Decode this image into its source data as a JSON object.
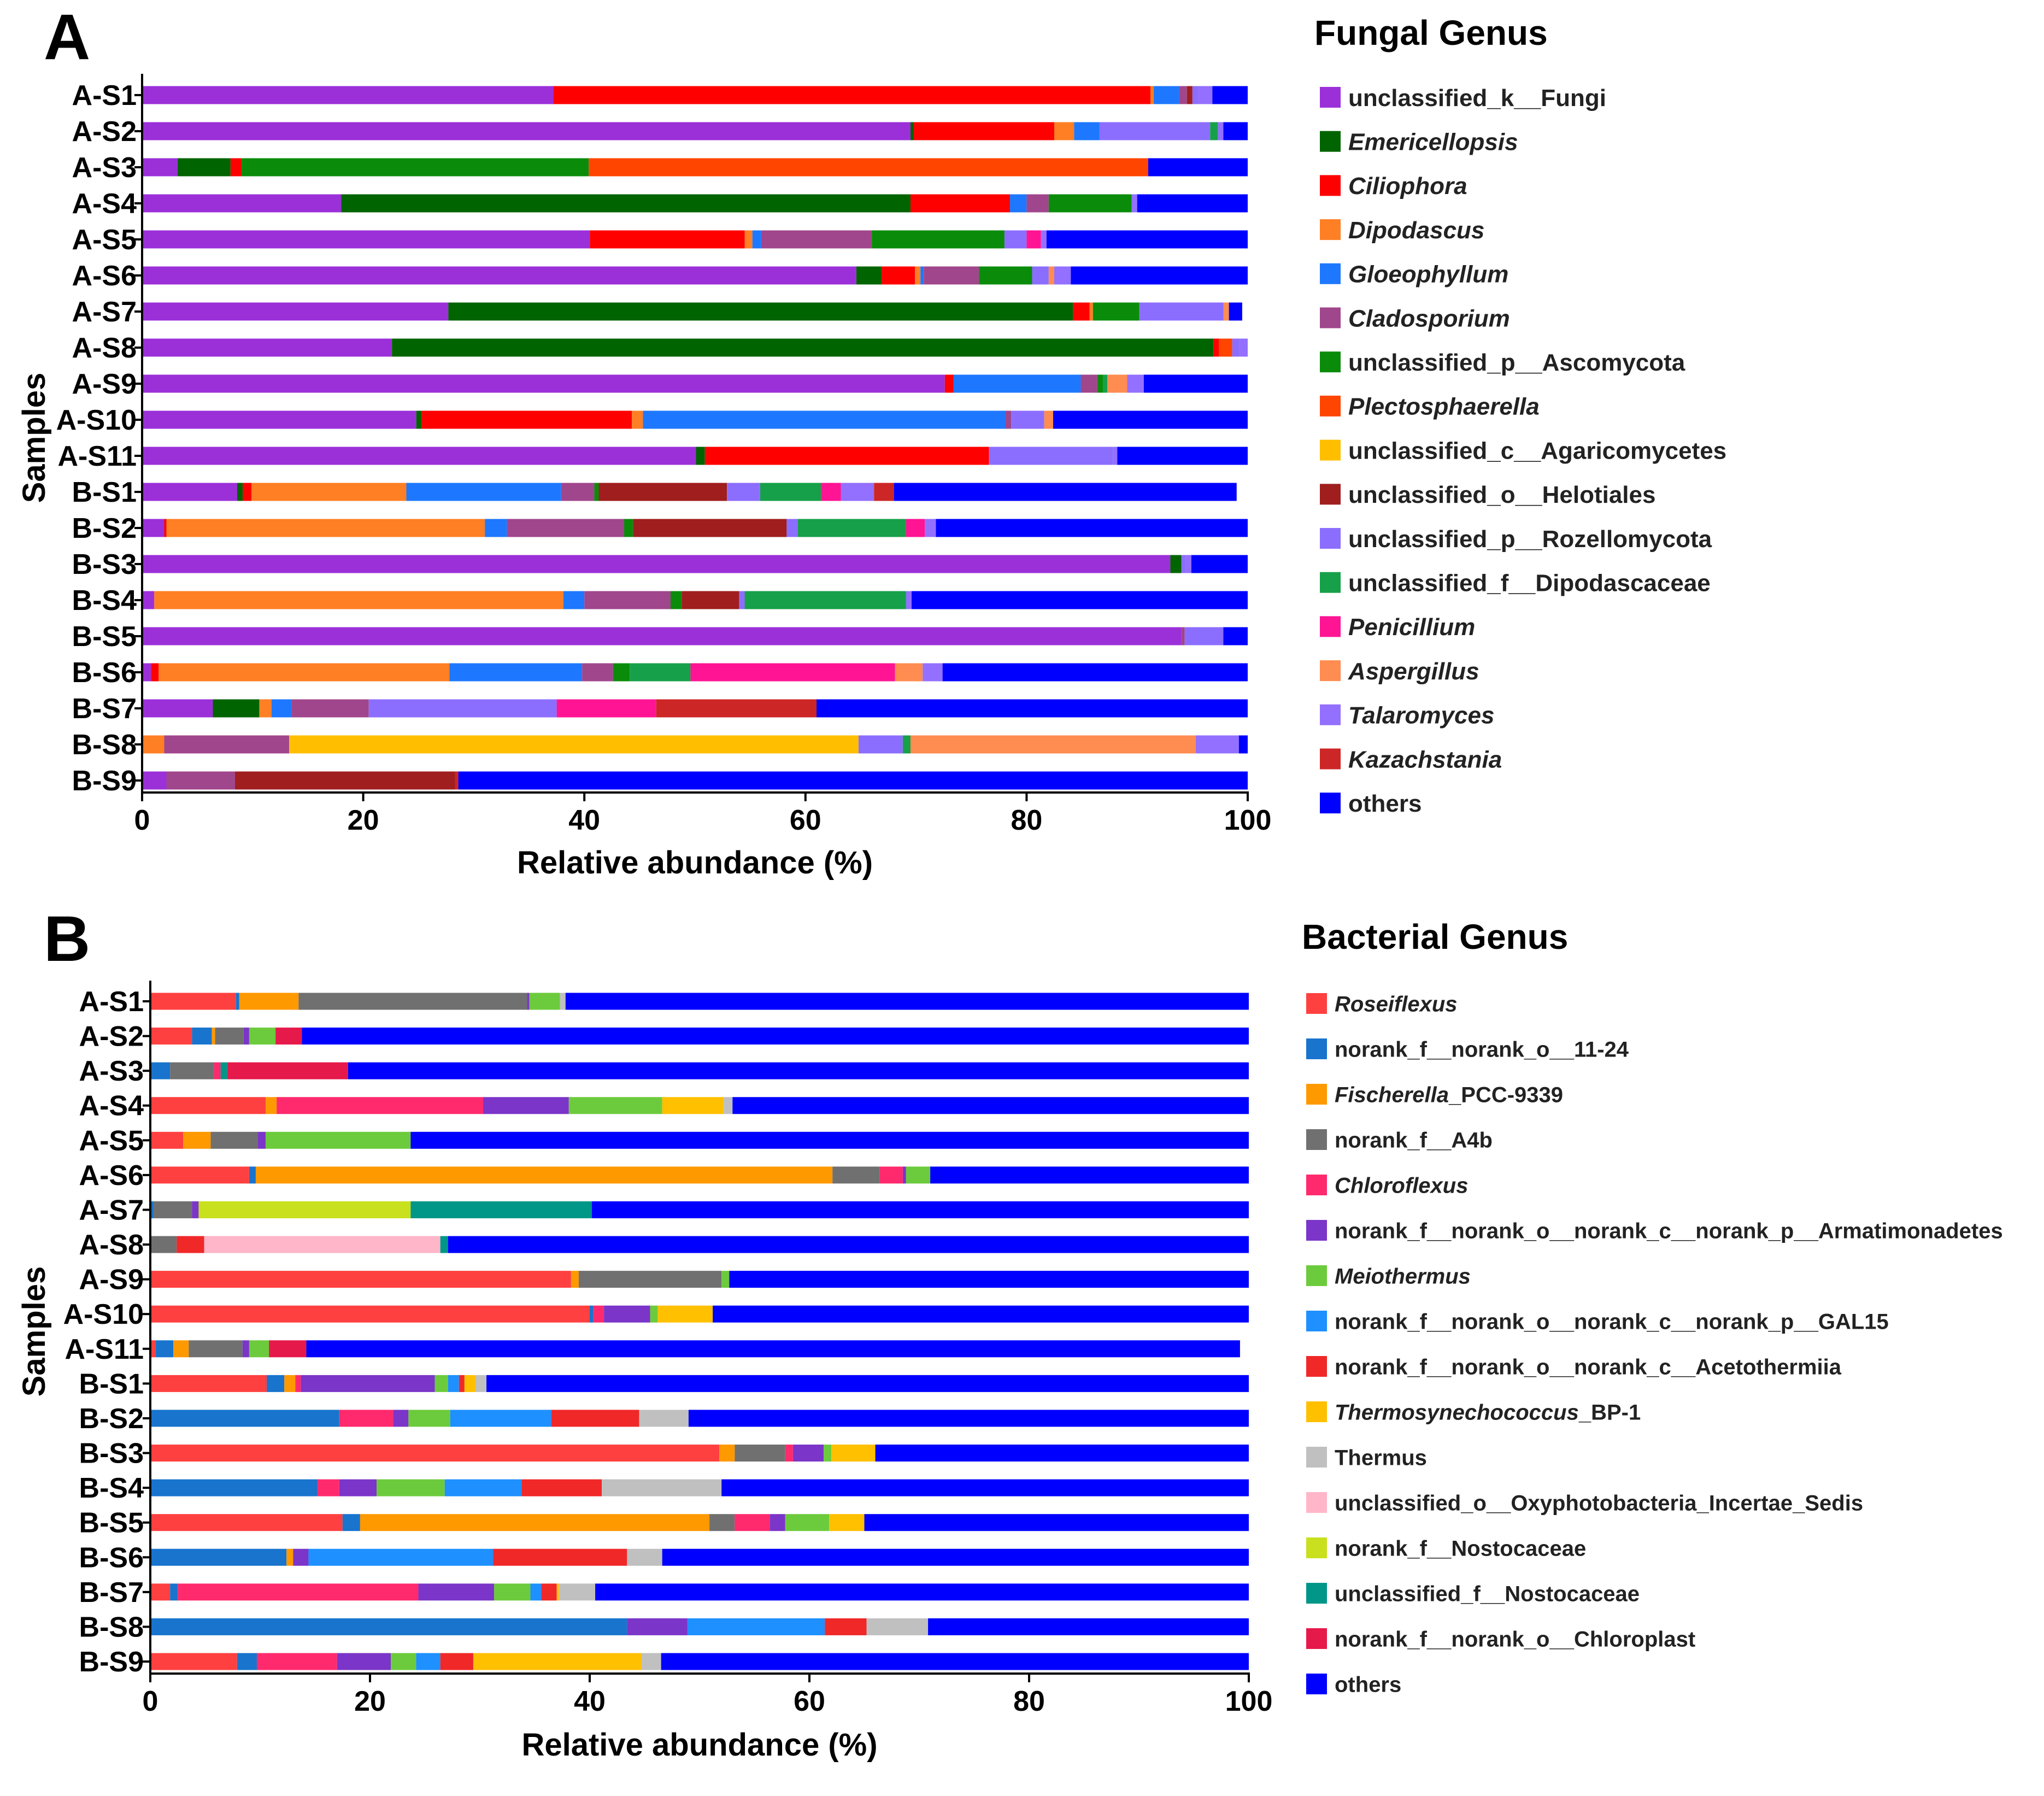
{
  "figure": {
    "panels": [
      "A",
      "B"
    ]
  },
  "chart_data": [
    {
      "type": "bar",
      "orientation": "horizontal",
      "stacked": true,
      "panel_label": "A",
      "title": "Fungal Genus",
      "xlabel": "Relative abundance (%)",
      "ylabel": "Samples",
      "xlim": [
        0,
        100
      ],
      "xticks": [
        0,
        20,
        40,
        60,
        80,
        100
      ],
      "legend_position": "right",
      "categories": [
        "A-S1",
        "A-S2",
        "A-S3",
        "A-S4",
        "A-S5",
        "A-S6",
        "A-S7",
        "A-S8",
        "A-S9",
        "A-S10",
        "A-S11",
        "B-S1",
        "B-S2",
        "B-S3",
        "B-S4",
        "B-S5",
        "B-S6",
        "B-S7",
        "B-S8",
        "B-S9"
      ],
      "series": [
        {
          "name": "unclassified_k__Fungi",
          "italic": false,
          "color": "#9b30d9",
          "values": [
            37.2,
            69.5,
            3.2,
            18.0,
            40.5,
            64.6,
            27.7,
            22.6,
            72.6,
            24.8,
            50.1,
            8.6,
            2.0,
            93.0,
            1.1,
            94.0,
            0.8,
            6.4,
            0,
            2.2
          ]
        },
        {
          "name": "Emericellopsis",
          "italic": true,
          "color": "#006400",
          "values": [
            0,
            0.3,
            4.8,
            51.5,
            0,
            2.3,
            56.5,
            74.3,
            0,
            0.5,
            0.8,
            0.5,
            0,
            1.0,
            0,
            0,
            0,
            4.2,
            0,
            0
          ]
        },
        {
          "name": "Ciliophora",
          "italic": true,
          "color": "#ff0000",
          "values": [
            54.0,
            12.7,
            1.0,
            9.0,
            14.0,
            3.0,
            1.5,
            0.5,
            0.8,
            19.0,
            25.7,
            0.8,
            0.2,
            0,
            0,
            0,
            0.7,
            0,
            0,
            0
          ]
        },
        {
          "name": "Dipodascus",
          "italic": true,
          "color": "#ff7f24",
          "values": [
            0.3,
            1.8,
            0,
            0,
            0.7,
            0.5,
            0.3,
            0,
            0,
            1.0,
            0,
            14.0,
            28.8,
            0,
            37.0,
            0,
            26.3,
            1.1,
            2.0,
            0
          ]
        },
        {
          "name": "Gloeophyllum",
          "italic": true,
          "color": "#1e78ff",
          "values": [
            2.3,
            2.3,
            0,
            1.5,
            0.8,
            0.3,
            0,
            0,
            11.5,
            32.8,
            0,
            14.0,
            2.0,
            0,
            1.9,
            0,
            12.0,
            1.8,
            0,
            0
          ]
        },
        {
          "name": "Cladosporium",
          "italic": true,
          "color": "#a0468c",
          "values": [
            0.7,
            0,
            0,
            2.0,
            10.0,
            5.0,
            0,
            0,
            1.5,
            0.5,
            0,
            3.0,
            10.6,
            0,
            7.8,
            0.3,
            2.8,
            7.0,
            11.3,
            6.2
          ]
        },
        {
          "name": "unclassified_p__Ascomycota",
          "italic": false,
          "color": "#0a8c0a",
          "values": [
            0,
            0,
            31.4,
            7.5,
            12.0,
            4.8,
            4.2,
            0,
            0.5,
            0,
            0,
            0.4,
            0.8,
            0,
            1.0,
            0,
            1.5,
            0,
            0,
            0
          ]
        },
        {
          "name": "Plectosphaerella",
          "italic": true,
          "color": "#ff4500",
          "values": [
            0,
            0,
            50.6,
            0,
            0,
            0,
            0,
            1.2,
            0,
            0,
            0,
            0,
            0,
            0,
            0,
            0,
            0,
            0,
            0,
            0
          ]
        },
        {
          "name": "unclassified_c__Agaricomycetes",
          "italic": false,
          "color": "#ffbf00",
          "values": [
            0,
            0,
            0,
            0,
            0,
            0,
            0,
            0,
            0,
            0,
            0,
            0,
            0,
            0,
            0,
            0,
            0,
            0,
            51.5,
            0
          ]
        },
        {
          "name": "unclassified_o__Helotiales",
          "italic": false,
          "color": "#a01e1e",
          "values": [
            0.5,
            0,
            0,
            0,
            0,
            0,
            0,
            0,
            0,
            0,
            0,
            11.6,
            13.9,
            0,
            5.2,
            0,
            0,
            0,
            0,
            19.9
          ]
        },
        {
          "name": "unclassified_p__Rozellomycota",
          "italic": false,
          "color": "#8c6eff",
          "values": [
            0.5,
            10.0,
            0,
            0,
            2.0,
            1.5,
            7.6,
            0.7,
            0,
            3.0,
            11.2,
            3.0,
            1.0,
            0.4,
            0.5,
            3.5,
            0,
            17.0,
            4.0,
            0
          ]
        },
        {
          "name": "unclassified_f__Dipodascaceae",
          "italic": false,
          "color": "#16a04a",
          "values": [
            0,
            0.7,
            0,
            0,
            0,
            0,
            0,
            0,
            0.4,
            0,
            0,
            5.5,
            9.8,
            0,
            14.6,
            0,
            5.5,
            0,
            0.7,
            0
          ]
        },
        {
          "name": "Penicillium",
          "italic": true,
          "color": "#ff1493",
          "values": [
            0,
            0,
            0,
            0,
            1.3,
            0,
            0,
            0,
            0,
            0,
            0,
            1.8,
            1.7,
            0,
            0,
            0,
            18.5,
            9.0,
            0,
            0
          ]
        },
        {
          "name": "Aspergillus",
          "italic": true,
          "color": "#ff8c50",
          "values": [
            0,
            0,
            0,
            0,
            0,
            0.5,
            0.5,
            0,
            1.8,
            0.8,
            0,
            0,
            0,
            0,
            0,
            0,
            2.5,
            0,
            25.8,
            0
          ]
        },
        {
          "name": "Talaromyces",
          "italic": true,
          "color": "#9370ff",
          "values": [
            1.3,
            0.5,
            0,
            0.5,
            0.5,
            1.5,
            0,
            0.7,
            1.5,
            0,
            0.4,
            3.0,
            1.0,
            0.5,
            0.5,
            0,
            1.8,
            0,
            3.9,
            0
          ]
        },
        {
          "name": "Kazachstania",
          "italic": true,
          "color": "#cd2626",
          "values": [
            0,
            0,
            0,
            0,
            0,
            0,
            0,
            0,
            0,
            0,
            0,
            1.8,
            0,
            0,
            0,
            0,
            0,
            14.5,
            0,
            0.3
          ]
        },
        {
          "name": "others",
          "italic": false,
          "color": "#0000ff",
          "values": [
            3.2,
            2.2,
            9.0,
            10.0,
            18.2,
            16.0,
            1.2,
            0,
            9.4,
            17.6,
            11.8,
            31.0,
            28.2,
            5.1,
            30.4,
            2.2,
            27.6,
            39.0,
            4.8,
            71.4
          ]
        }
      ]
    },
    {
      "type": "bar",
      "orientation": "horizontal",
      "stacked": true,
      "panel_label": "B",
      "title": "Bacterial Genus",
      "xlabel": "Relative abundance (%)",
      "ylabel": "Samples",
      "xlim": [
        0,
        100
      ],
      "xticks": [
        0,
        20,
        40,
        60,
        80,
        100
      ],
      "legend_position": "right",
      "categories": [
        "A-S1",
        "A-S2",
        "A-S3",
        "A-S4",
        "A-S5",
        "A-S6",
        "A-S7",
        "A-S8",
        "A-S9",
        "A-S10",
        "A-S11",
        "B-S1",
        "B-S2",
        "B-S3",
        "B-S4",
        "B-S5",
        "B-S6",
        "B-S7",
        "B-S8",
        "B-S9"
      ],
      "series": [
        {
          "name": "Roseiflexus",
          "italic": true,
          "suffix": "",
          "color": "#ff4040",
          "values": [
            7.8,
            3.8,
            0,
            10.5,
            3.0,
            9.0,
            0,
            0,
            38.3,
            40.0,
            0.5,
            10.6,
            0,
            51.8,
            0,
            17.5,
            0,
            1.8,
            0,
            7.9
          ]
        },
        {
          "name": "norank_f__norank_o__11-24",
          "italic": false,
          "suffix": "",
          "color": "#1874cd",
          "values": [
            0.3,
            1.8,
            1.8,
            0,
            0,
            0.6,
            0.3,
            0,
            0,
            0.3,
            1.6,
            1.6,
            17.2,
            0,
            15.2,
            1.6,
            12.4,
            0.7,
            43.4,
            1.8
          ]
        },
        {
          "name": "Fischerella",
          "italic": true,
          "suffix": "_PCC-9339",
          "color": "#ff9900",
          "values": [
            5.4,
            0.3,
            0,
            1.0,
            2.5,
            52.5,
            0,
            0,
            0.7,
            0,
            1.4,
            1.0,
            0,
            1.4,
            0,
            31.8,
            0.6,
            0,
            0,
            0
          ]
        },
        {
          "name": "norank_f__A4b",
          "italic": false,
          "suffix": "",
          "color": "#707070",
          "values": [
            20.8,
            2.6,
            4.0,
            0,
            4.3,
            4.3,
            3.5,
            2.4,
            13.0,
            0,
            4.9,
            0,
            0,
            4.6,
            0,
            2.3,
            0,
            0,
            0,
            0
          ]
        },
        {
          "name": "Chloroflexus",
          "italic": true,
          "suffix": "",
          "color": "#ff2a6d",
          "values": [
            0,
            0,
            0.6,
            18.8,
            0,
            2.1,
            0,
            0,
            0,
            1.0,
            0,
            0.5,
            4.9,
            0.7,
            2.0,
            3.2,
            0,
            21.9,
            0,
            7.3
          ]
        },
        {
          "name": "norank_f__norank_o__norank_c__norank_p__Armatimonadetes",
          "italic": false,
          "suffix": "",
          "color": "#7b35c8",
          "values": [
            0.2,
            0.5,
            0,
            7.8,
            0.7,
            0.3,
            0.6,
            0,
            0,
            4.2,
            0.6,
            12.2,
            1.4,
            2.8,
            3.4,
            1.4,
            1.4,
            6.9,
            5.5,
            4.9
          ]
        },
        {
          "name": "Meiothermus",
          "italic": true,
          "suffix": "",
          "color": "#6ccb3c",
          "values": [
            2.8,
            2.4,
            0,
            8.5,
            13.2,
            2.2,
            0,
            0,
            0.7,
            0.7,
            1.8,
            1.2,
            3.8,
            0.7,
            6.2,
            4.0,
            0,
            3.3,
            0,
            2.3
          ]
        },
        {
          "name": "norank_f__norank_o__norank_c__norank_p__GAL15",
          "italic": false,
          "suffix": "",
          "color": "#1e90ff",
          "values": [
            0,
            0,
            0,
            0,
            0,
            0,
            0,
            0,
            0,
            0,
            0,
            1.0,
            9.2,
            0,
            7.0,
            0,
            16.8,
            1.0,
            12.5,
            2.2
          ]
        },
        {
          "name": "norank_f__norank_o__norank_c__Acetothermiia",
          "italic": false,
          "suffix": "",
          "color": "#f02828",
          "values": [
            0,
            0,
            0,
            0,
            0,
            0,
            0,
            2.5,
            0,
            0,
            0,
            0.5,
            8.0,
            0,
            7.3,
            0,
            12.2,
            1.4,
            3.8,
            3.0
          ]
        },
        {
          "name": "Thermosynechococcus",
          "italic": true,
          "suffix": "_BP-1",
          "color": "#ffc000",
          "values": [
            0,
            0,
            0,
            5.6,
            0,
            0,
            0,
            0,
            0,
            5.0,
            0,
            1.0,
            0,
            4.0,
            0,
            3.2,
            0,
            0.2,
            0,
            15.3
          ]
        },
        {
          "name": "Thermus",
          "italic": false,
          "suffix": "",
          "color": "#c0c0c0",
          "values": [
            0.5,
            0,
            0,
            0.8,
            0,
            0,
            0,
            0,
            0,
            0,
            0,
            1.0,
            4.5,
            0,
            10.9,
            0,
            3.2,
            3.3,
            5.6,
            1.8
          ]
        },
        {
          "name": "unclassified_o__Oxyphotobacteria_Incertae_Sedis",
          "italic": false,
          "suffix": "",
          "color": "#ffb6c8",
          "values": [
            0,
            0,
            0,
            0,
            0,
            0,
            0,
            21.5,
            0,
            0,
            0,
            0,
            0,
            0,
            0,
            0,
            0,
            0,
            0,
            0
          ]
        },
        {
          "name": "norank_f__Nostocaceae",
          "italic": false,
          "suffix": "",
          "color": "#c8e01e",
          "values": [
            0,
            0,
            0,
            0,
            0,
            0,
            19.3,
            0,
            0,
            0,
            0,
            0,
            0,
            0,
            0,
            0,
            0,
            0,
            0,
            0
          ]
        },
        {
          "name": "unclassified_f__Nostocaceae",
          "italic": false,
          "suffix": "",
          "color": "#009688",
          "values": [
            0,
            0,
            0.6,
            0,
            0,
            0,
            16.5,
            0.7,
            0,
            0,
            0,
            0,
            0,
            0,
            0,
            0,
            0,
            0,
            0,
            0
          ]
        },
        {
          "name": "norank_f__norank_o__Chloroplast",
          "italic": false,
          "suffix": "",
          "color": "#e6194b",
          "values": [
            0,
            2.4,
            11.0,
            0,
            0,
            0,
            0,
            0,
            0,
            0,
            3.4,
            0,
            0,
            0,
            0,
            0,
            0,
            0,
            0,
            0
          ]
        },
        {
          "name": "others",
          "italic": false,
          "suffix": "",
          "color": "#0000ff",
          "values": [
            62.2,
            86.2,
            82.0,
            47.0,
            76.3,
            29.0,
            59.8,
            72.9,
            47.3,
            48.8,
            85.0,
            69.4,
            51.0,
            34.0,
            48.0,
            35.0,
            53.4,
            59.5,
            29.2,
            53.5
          ]
        }
      ]
    }
  ]
}
